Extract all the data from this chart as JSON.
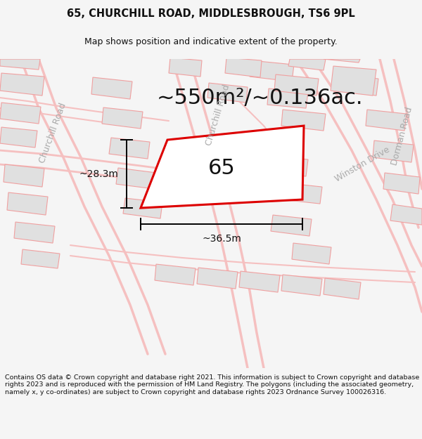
{
  "title_line1": "65, CHURCHILL ROAD, MIDDLESBROUGH, TS6 9PL",
  "title_line2": "Map shows position and indicative extent of the property.",
  "area_text": "~550m²/~0.136ac.",
  "label_number": "65",
  "dim_width": "~36.5m",
  "dim_height": "~28.3m",
  "road_label_left": "Churchill Road",
  "road_label_top": "Churchill Road",
  "road_label_right": "Winston Drive",
  "road_label_bottom_right": "Dorman Road",
  "footer_text": "Contains OS data © Crown copyright and database right 2021. This information is subject to Crown copyright and database rights 2023 and is reproduced with the permission of HM Land Registry. The polygons (including the associated geometry, namely x, y co-ordinates) are subject to Crown copyright and database rights 2023 Ordnance Survey 100026316.",
  "bg_color": "#f5f5f5",
  "map_bg": "#ffffff",
  "plot_color": "#dd0000",
  "building_fill": "#e0e0e0",
  "building_stroke": "#f0a0a0",
  "road_color": "#f5c0c0",
  "text_color": "#111111",
  "road_text_color": "#aaaaaa",
  "footer_color": "#111111",
  "title_fontsize": 10.5,
  "subtitle_fontsize": 9,
  "area_fontsize": 22,
  "dim_fontsize": 10,
  "road_fontsize": 9,
  "label_fontsize": 22
}
